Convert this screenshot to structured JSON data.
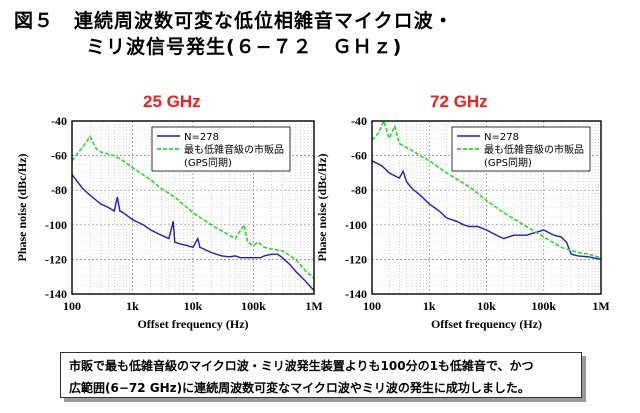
{
  "title": {
    "line1": "図５　連続周波数可変な低位相雑音マイクロ波・",
    "line2": "ミリ波信号発生(６−７２　ＧＨｚ)"
  },
  "chart_data": [
    {
      "type": "line",
      "title": "25 GHz",
      "xlabel": "Offset frequency (Hz)",
      "ylabel": "Phase noise (dBc/Hz)",
      "xscale": "log",
      "xlim": [
        100,
        1000000
      ],
      "ylim": [
        -140,
        -40
      ],
      "xticks": [
        "100",
        "1k",
        "10k",
        "100k",
        "1M"
      ],
      "yticks": [
        "-40",
        "-60",
        "-80",
        "-100",
        "-120",
        "-140"
      ],
      "grid": true,
      "legend_position": "top-right",
      "series": [
        {
          "name": "N=278",
          "color": "#1a1adc",
          "style": "solid",
          "points": [
            [
              100,
              -71
            ],
            [
              150,
              -79
            ],
            [
              200,
              -83
            ],
            [
              300,
              -88
            ],
            [
              400,
              -90
            ],
            [
              500,
              -92
            ],
            [
              560,
              -84
            ],
            [
              620,
              -92
            ],
            [
              700,
              -93
            ],
            [
              1000,
              -97
            ],
            [
              1500,
              -100
            ],
            [
              2000,
              -103
            ],
            [
              3000,
              -106
            ],
            [
              4000,
              -108
            ],
            [
              4700,
              -98
            ],
            [
              5000,
              -110
            ],
            [
              6000,
              -111
            ],
            [
              8000,
              -112
            ],
            [
              10000,
              -113
            ],
            [
              12000,
              -108
            ],
            [
              13000,
              -113
            ],
            [
              15000,
              -114
            ],
            [
              20000,
              -116
            ],
            [
              30000,
              -118
            ],
            [
              40000,
              -118.5
            ],
            [
              50000,
              -118
            ],
            [
              60000,
              -119
            ],
            [
              80000,
              -119
            ],
            [
              100000,
              -119
            ],
            [
              130000,
              -119
            ],
            [
              150000,
              -118
            ],
            [
              200000,
              -117
            ],
            [
              250000,
              -117
            ],
            [
              300000,
              -119
            ],
            [
              400000,
              -123
            ],
            [
              500000,
              -127
            ],
            [
              700000,
              -132
            ],
            [
              1000000,
              -138
            ]
          ]
        },
        {
          "name": "最も低雑音級の市販品",
          "note": "(GPS同期)",
          "color": "#22e022",
          "style": "dashed",
          "points": [
            [
              100,
              -63
            ],
            [
              150,
              -55
            ],
            [
              200,
              -49
            ],
            [
              250,
              -56
            ],
            [
              300,
              -58
            ],
            [
              500,
              -60
            ],
            [
              700,
              -63
            ],
            [
              1000,
              -67
            ],
            [
              2000,
              -74
            ],
            [
              3000,
              -79
            ],
            [
              5000,
              -84
            ],
            [
              10000,
              -93
            ],
            [
              20000,
              -100
            ],
            [
              50000,
              -108
            ],
            [
              70000,
              -100
            ],
            [
              80000,
              -110
            ],
            [
              100000,
              -112
            ],
            [
              120000,
              -110
            ],
            [
              150000,
              -113
            ],
            [
              200000,
              -114
            ],
            [
              300000,
              -115
            ],
            [
              500000,
              -120
            ],
            [
              700000,
              -126
            ],
            [
              1000000,
              -131
            ]
          ]
        }
      ]
    },
    {
      "type": "line",
      "title": "72 GHz",
      "xlabel": "Offset frequency (Hz)",
      "ylabel": "Phase noise (dBc/Hz)",
      "xscale": "log",
      "xlim": [
        100,
        1000000
      ],
      "ylim": [
        -140,
        -40
      ],
      "xticks": [
        "100",
        "1k",
        "10k",
        "100k",
        "1M"
      ],
      "yticks": [
        "-40",
        "-60",
        "-80",
        "-100",
        "-120",
        "-140"
      ],
      "grid": true,
      "legend_position": "top-right",
      "series": [
        {
          "name": "N=278",
          "color": "#1a1adc",
          "style": "solid",
          "points": [
            [
              100,
              -63
            ],
            [
              150,
              -66
            ],
            [
              200,
              -70
            ],
            [
              300,
              -73
            ],
            [
              350,
              -69
            ],
            [
              400,
              -75
            ],
            [
              500,
              -79
            ],
            [
              700,
              -83
            ],
            [
              1000,
              -88
            ],
            [
              1500,
              -92
            ],
            [
              2000,
              -96
            ],
            [
              3000,
              -98
            ],
            [
              4000,
              -100
            ],
            [
              5000,
              -101
            ],
            [
              7000,
              -101
            ],
            [
              10000,
              -103
            ],
            [
              15000,
              -106
            ],
            [
              20000,
              -108
            ],
            [
              30000,
              -106
            ],
            [
              50000,
              -106
            ],
            [
              80000,
              -104
            ],
            [
              100000,
              -103
            ],
            [
              150000,
              -106
            ],
            [
              200000,
              -107
            ],
            [
              250000,
              -110
            ],
            [
              300000,
              -117
            ],
            [
              400000,
              -118
            ],
            [
              600000,
              -118.5
            ],
            [
              1000000,
              -120
            ]
          ]
        },
        {
          "name": "最も低雑音級の市販品",
          "note": "(GPS同期)",
          "color": "#22e022",
          "style": "dashed",
          "points": [
            [
              100,
              -51
            ],
            [
              130,
              -47
            ],
            [
              160,
              -40
            ],
            [
              200,
              -50
            ],
            [
              250,
              -43
            ],
            [
              300,
              -53
            ],
            [
              500,
              -57
            ],
            [
              700,
              -60
            ],
            [
              1000,
              -63
            ],
            [
              2000,
              -70
            ],
            [
              5000,
              -78
            ],
            [
              10000,
              -86
            ],
            [
              20000,
              -93
            ],
            [
              50000,
              -101
            ],
            [
              100000,
              -107
            ],
            [
              200000,
              -113
            ],
            [
              400000,
              -116
            ],
            [
              600000,
              -117
            ],
            [
              1000000,
              -119
            ]
          ]
        }
      ]
    }
  ],
  "caption": {
    "line1": "市販で最も低雑音級のマイクロ波・ミリ波発生装置よりも100分の1も低雑音で、かつ",
    "line2": "広範囲(6−72 GHz)に連続周波数可変なマイクロ波やミリ波の発生に成功しました。"
  }
}
